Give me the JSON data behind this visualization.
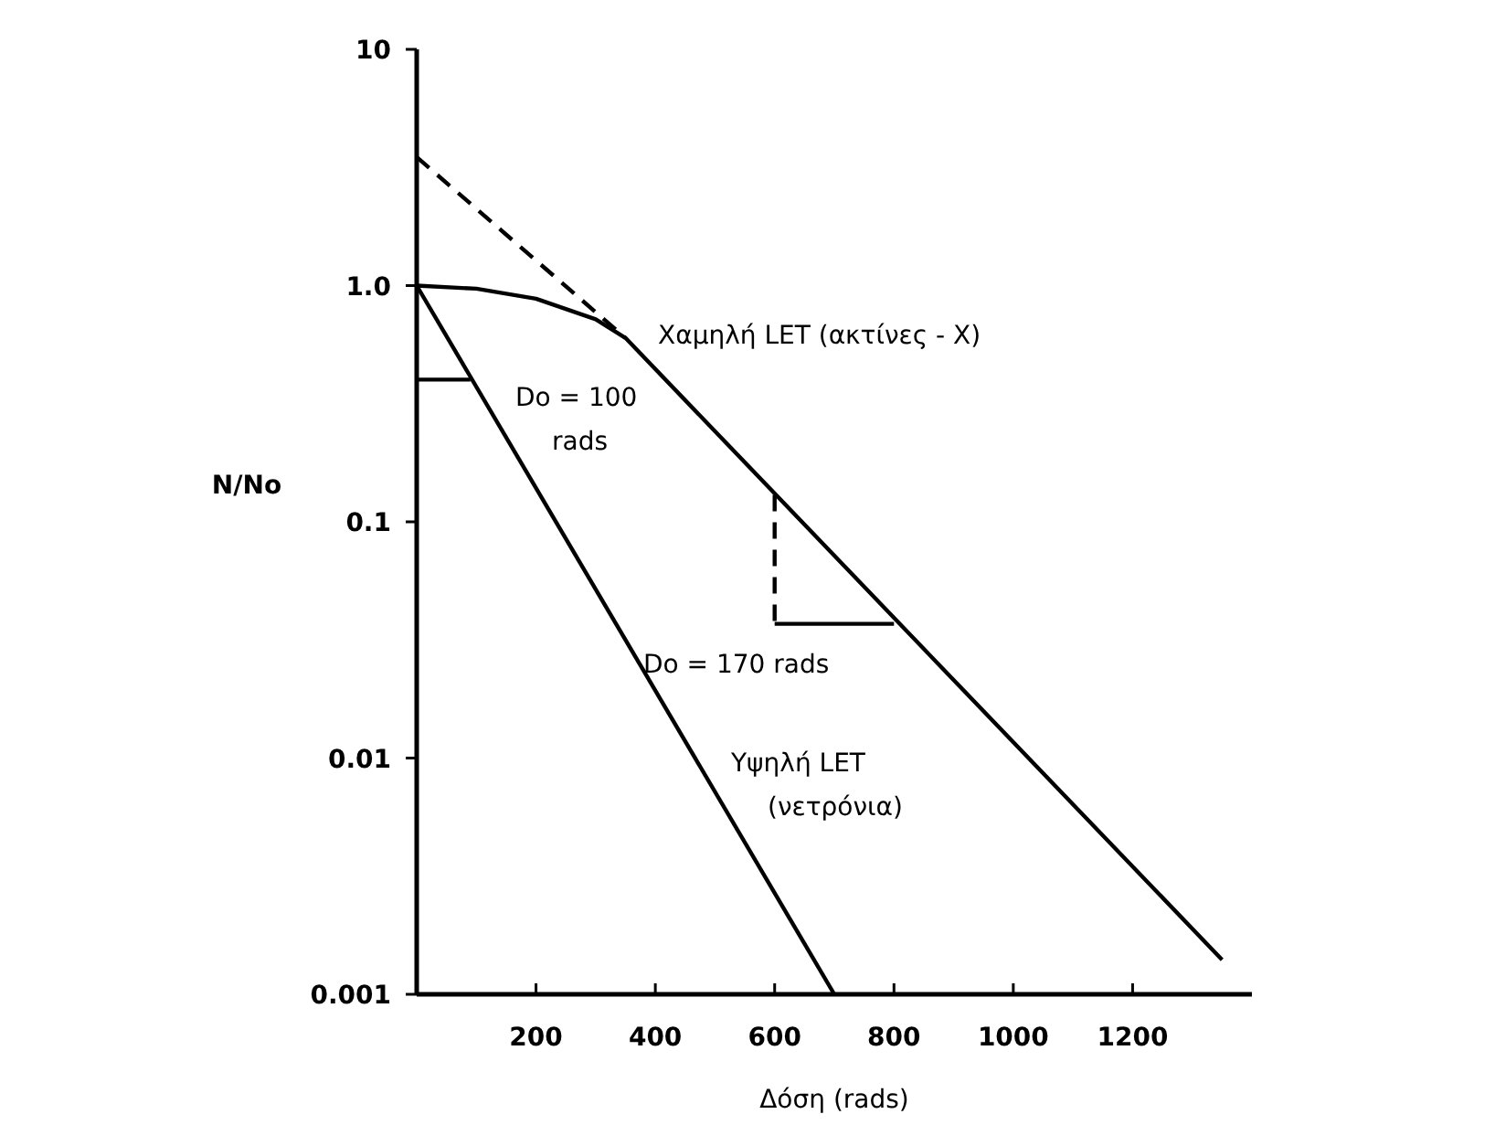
{
  "chart_data": {
    "type": "line",
    "xlabel": "Δόση (rads)",
    "ylabel": "N/No",
    "log": "y",
    "grid": false,
    "xlim": [
      0,
      1400
    ],
    "xticks": [
      200,
      400,
      600,
      800,
      1000,
      1200
    ],
    "ylim": [
      0.001,
      10
    ],
    "yticks": [
      10,
      {
        "value": 1,
        "label": "1.0"
      },
      0.1,
      0.01,
      0.001
    ],
    "series": [
      {
        "color": "#000000",
        "line_style": "solid",
        "x": [
          0,
          100,
          200,
          300,
          350,
          1350
        ],
        "values": [
          1,
          0.97,
          0.88,
          0.72,
          0.6,
          0.0014
        ]
      },
      {
        "color": "#000000",
        "line_style": "dashed",
        "x": [
          0,
          350
        ],
        "values": [
          3.5,
          0.6
        ]
      },
      {
        "color": "#000000",
        "line_style": "solid",
        "x": [
          0,
          700
        ],
        "values": [
          1,
          0.001
        ]
      },
      {
        "color": "#000000",
        "line_style": "dashed",
        "x": [
          600,
          600
        ],
        "values": [
          0.13,
          0.037
        ]
      },
      {
        "color": "#000000",
        "line_style": "solid",
        "x": [
          600,
          800
        ],
        "values": [
          0.037,
          0.037
        ]
      },
      {
        "color": "#000000",
        "line_style": "solid",
        "x": [
          0,
          90
        ],
        "values": [
          0.4,
          0.4
        ]
      }
    ],
    "annotations": [
      "Χαμηλή LET (ακτίνες - X)",
      "Do = 100\nrads",
      "Do = 170 rads",
      "Υψηλή LET\n(νετρόνια)"
    ]
  }
}
